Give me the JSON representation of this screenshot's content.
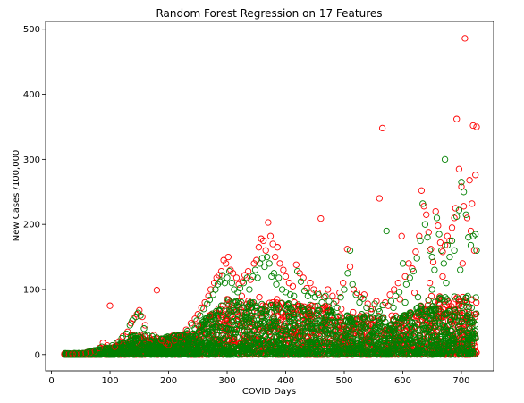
{
  "chart_data": {
    "type": "scatter",
    "title": "Random Forest Regression on 17 Features",
    "xlabel": "COVID Days",
    "ylabel": "New Cases /100,000",
    "xlim": [
      -10,
      755
    ],
    "ylim": [
      -25,
      512
    ],
    "xticks": [
      0,
      100,
      200,
      300,
      400,
      500,
      600,
      700
    ],
    "yticks": [
      0,
      100,
      200,
      300,
      400,
      500
    ],
    "grid": false,
    "legend": "none",
    "marker": "hollow-circle",
    "series": [
      {
        "color": "#ff0000",
        "points": [
          [
            22,
            1
          ],
          [
            30,
            1
          ],
          [
            36,
            1
          ],
          [
            42,
            1
          ],
          [
            50,
            1
          ],
          [
            58,
            2
          ],
          [
            66,
            3
          ],
          [
            74,
            5
          ],
          [
            82,
            10
          ],
          [
            88,
            18
          ],
          [
            95,
            14
          ],
          [
            100,
            75
          ],
          [
            108,
            12
          ],
          [
            115,
            20
          ],
          [
            122,
            28
          ],
          [
            130,
            35
          ],
          [
            136,
            48
          ],
          [
            140,
            55
          ],
          [
            146,
            62
          ],
          [
            150,
            68
          ],
          [
            155,
            58
          ],
          [
            160,
            45
          ],
          [
            168,
            25
          ],
          [
            175,
            30
          ],
          [
            180,
            99
          ],
          [
            188,
            22
          ],
          [
            195,
            18
          ],
          [
            200,
            15
          ],
          [
            210,
            22
          ],
          [
            220,
            28
          ],
          [
            230,
            38
          ],
          [
            238,
            48
          ],
          [
            245,
            55
          ],
          [
            250,
            62
          ],
          [
            256,
            72
          ],
          [
            262,
            80
          ],
          [
            268,
            90
          ],
          [
            272,
            100
          ],
          [
            278,
            110
          ],
          [
            282,
            118
          ],
          [
            286,
            122
          ],
          [
            290,
            128
          ],
          [
            294,
            145
          ],
          [
            298,
            140
          ],
          [
            302,
            150
          ],
          [
            306,
            130
          ],
          [
            310,
            125
          ],
          [
            316,
            118
          ],
          [
            320,
            108
          ],
          [
            326,
            112
          ],
          [
            330,
            122
          ],
          [
            336,
            128
          ],
          [
            340,
            115
          ],
          [
            346,
            140
          ],
          [
            350,
            145
          ],
          [
            354,
            165
          ],
          [
            358,
            178
          ],
          [
            362,
            175
          ],
          [
            366,
            160
          ],
          [
            370,
            203
          ],
          [
            374,
            182
          ],
          [
            378,
            170
          ],
          [
            382,
            150
          ],
          [
            386,
            165
          ],
          [
            390,
            140
          ],
          [
            396,
            130
          ],
          [
            400,
            120
          ],
          [
            406,
            110
          ],
          [
            412,
            105
          ],
          [
            418,
            138
          ],
          [
            424,
            125
          ],
          [
            430,
            118
          ],
          [
            436,
            102
          ],
          [
            442,
            110
          ],
          [
            448,
            100
          ],
          [
            455,
            95
          ],
          [
            460,
            209
          ],
          [
            466,
            88
          ],
          [
            472,
            100
          ],
          [
            480,
            90
          ],
          [
            486,
            82
          ],
          [
            492,
            95
          ],
          [
            498,
            110
          ],
          [
            505,
            162
          ],
          [
            510,
            135
          ],
          [
            516,
            100
          ],
          [
            522,
            95
          ],
          [
            528,
            88
          ],
          [
            534,
            92
          ],
          [
            540,
            78
          ],
          [
            548,
            70
          ],
          [
            555,
            82
          ],
          [
            560,
            240
          ],
          [
            565,
            348
          ],
          [
            570,
            80
          ],
          [
            578,
            92
          ],
          [
            585,
            100
          ],
          [
            592,
            110
          ],
          [
            598,
            182
          ],
          [
            604,
            120
          ],
          [
            610,
            140
          ],
          [
            616,
            132
          ],
          [
            622,
            158
          ],
          [
            628,
            182
          ],
          [
            632,
            252
          ],
          [
            636,
            228
          ],
          [
            640,
            215
          ],
          [
            644,
            188
          ],
          [
            648,
            162
          ],
          [
            652,
            142
          ],
          [
            656,
            220
          ],
          [
            660,
            198
          ],
          [
            664,
            172
          ],
          [
            668,
            158
          ],
          [
            672,
            168
          ],
          [
            676,
            182
          ],
          [
            680,
            175
          ],
          [
            684,
            195
          ],
          [
            688,
            210
          ],
          [
            692,
            362
          ],
          [
            696,
            285
          ],
          [
            700,
            258
          ],
          [
            704,
            228
          ],
          [
            706,
            486
          ],
          [
            710,
            210
          ],
          [
            714,
            268
          ],
          [
            718,
            232
          ],
          [
            720,
            352
          ],
          [
            722,
            160
          ],
          [
            724,
            276
          ],
          [
            726,
            350
          ],
          [
            716,
            190
          ],
          [
            690,
            225
          ],
          [
            702,
            140
          ],
          [
            668,
            120
          ],
          [
            646,
            110
          ],
          [
            620,
            95
          ],
          [
            595,
            85
          ],
          [
            575,
            75
          ],
          [
            545,
            70
          ],
          [
            515,
            65
          ],
          [
            495,
            70
          ],
          [
            470,
            72
          ],
          [
            445,
            75
          ],
          [
            415,
            80
          ],
          [
            385,
            85
          ],
          [
            355,
            88
          ],
          [
            325,
            90
          ],
          [
            300,
            85
          ],
          [
            270,
            60
          ],
          [
            250,
            45
          ]
        ]
      },
      {
        "color": "#008000",
        "points": [
          [
            24,
            1
          ],
          [
            32,
            1
          ],
          [
            40,
            1
          ],
          [
            48,
            1
          ],
          [
            56,
            2
          ],
          [
            64,
            3
          ],
          [
            72,
            5
          ],
          [
            80,
            8
          ],
          [
            86,
            12
          ],
          [
            94,
            10
          ],
          [
            104,
            14
          ],
          [
            112,
            18
          ],
          [
            120,
            25
          ],
          [
            128,
            32
          ],
          [
            134,
            45
          ],
          [
            138,
            52
          ],
          [
            144,
            58
          ],
          [
            148,
            64
          ],
          [
            152,
            60
          ],
          [
            158,
            40
          ],
          [
            164,
            30
          ],
          [
            172,
            28
          ],
          [
            180,
            26
          ],
          [
            190,
            24
          ],
          [
            200,
            20
          ],
          [
            212,
            24
          ],
          [
            222,
            30
          ],
          [
            232,
            36
          ],
          [
            240,
            45
          ],
          [
            248,
            52
          ],
          [
            254,
            60
          ],
          [
            260,
            70
          ],
          [
            266,
            78
          ],
          [
            270,
            84
          ],
          [
            276,
            92
          ],
          [
            280,
            100
          ],
          [
            284,
            108
          ],
          [
            288,
            112
          ],
          [
            292,
            122
          ],
          [
            296,
            110
          ],
          [
            300,
            118
          ],
          [
            304,
            128
          ],
          [
            308,
            110
          ],
          [
            312,
            100
          ],
          [
            318,
            96
          ],
          [
            322,
            102
          ],
          [
            328,
            110
          ],
          [
            334,
            118
          ],
          [
            338,
            100
          ],
          [
            344,
            120
          ],
          [
            348,
            130
          ],
          [
            352,
            118
          ],
          [
            356,
            140
          ],
          [
            360,
            148
          ],
          [
            364,
            135
          ],
          [
            368,
            150
          ],
          [
            372,
            140
          ],
          [
            376,
            120
          ],
          [
            380,
            125
          ],
          [
            384,
            108
          ],
          [
            388,
            118
          ],
          [
            394,
            100
          ],
          [
            400,
            96
          ],
          [
            408,
            92
          ],
          [
            414,
            90
          ],
          [
            420,
            128
          ],
          [
            426,
            112
          ],
          [
            432,
            98
          ],
          [
            438,
            90
          ],
          [
            444,
            95
          ],
          [
            450,
            88
          ],
          [
            456,
            92
          ],
          [
            462,
            80
          ],
          [
            468,
            90
          ],
          [
            474,
            82
          ],
          [
            482,
            78
          ],
          [
            488,
            72
          ],
          [
            494,
            88
          ],
          [
            500,
            100
          ],
          [
            506,
            125
          ],
          [
            510,
            160
          ],
          [
            514,
            108
          ],
          [
            520,
            92
          ],
          [
            526,
            80
          ],
          [
            532,
            86
          ],
          [
            538,
            72
          ],
          [
            546,
            66
          ],
          [
            552,
            78
          ],
          [
            558,
            70
          ],
          [
            566,
            76
          ],
          [
            572,
            190
          ],
          [
            580,
            82
          ],
          [
            588,
            90
          ],
          [
            594,
            96
          ],
          [
            600,
            140
          ],
          [
            606,
            108
          ],
          [
            612,
            118
          ],
          [
            618,
            128
          ],
          [
            624,
            148
          ],
          [
            630,
            175
          ],
          [
            634,
            232
          ],
          [
            638,
            200
          ],
          [
            642,
            180
          ],
          [
            646,
            160
          ],
          [
            650,
            150
          ],
          [
            654,
            130
          ],
          [
            658,
            210
          ],
          [
            662,
            185
          ],
          [
            666,
            160
          ],
          [
            670,
            140
          ],
          [
            672,
            300
          ],
          [
            676,
            168
          ],
          [
            680,
            150
          ],
          [
            684,
            175
          ],
          [
            688,
            160
          ],
          [
            692,
            212
          ],
          [
            696,
            222
          ],
          [
            700,
            265
          ],
          [
            704,
            250
          ],
          [
            708,
            215
          ],
          [
            712,
            180
          ],
          [
            716,
            168
          ],
          [
            720,
            182
          ],
          [
            724,
            185
          ],
          [
            726,
            160
          ],
          [
            698,
            130
          ],
          [
            674,
            110
          ],
          [
            650,
            100
          ],
          [
            626,
            88
          ],
          [
            604,
            80
          ],
          [
            584,
            72
          ],
          [
            560,
            66
          ],
          [
            530,
            62
          ],
          [
            505,
            60
          ],
          [
            480,
            64
          ],
          [
            455,
            68
          ],
          [
            430,
            70
          ],
          [
            405,
            72
          ],
          [
            375,
            76
          ],
          [
            345,
            80
          ],
          [
            315,
            82
          ],
          [
            290,
            75
          ],
          [
            265,
            55
          ],
          [
            245,
            40
          ],
          [
            225,
            30
          ]
        ]
      }
    ]
  }
}
